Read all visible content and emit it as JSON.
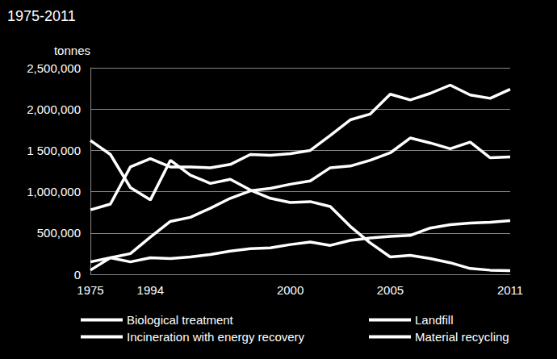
{
  "chart_data": {
    "type": "line",
    "title": "1975-2011",
    "ylabel": "tonnes",
    "categories": [
      "1975",
      null,
      null,
      "1994",
      null,
      null,
      null,
      null,
      null,
      null,
      "2000",
      null,
      null,
      null,
      null,
      "2005",
      null,
      null,
      null,
      null,
      null,
      "2011"
    ],
    "series": [
      {
        "name": "Biological treatment",
        "color": "#ffffff",
        "values": [
          50000,
          200000,
          150000,
          200000,
          190000,
          210000,
          240000,
          280000,
          310000,
          320000,
          360000,
          390000,
          350000,
          410000,
          440000,
          460000,
          470000,
          560000,
          600000,
          620000,
          630000,
          650000
        ]
      },
      {
        "name": "Landfill",
        "color": "#ffffff",
        "values": [
          1620000,
          1450000,
          1050000,
          900000,
          1380000,
          1200000,
          1100000,
          1150000,
          1020000,
          920000,
          870000,
          880000,
          820000,
          580000,
          380000,
          210000,
          230000,
          190000,
          140000,
          70000,
          50000,
          45000
        ]
      },
      {
        "name": "Incineration with energy recovery",
        "color": "#ffffff",
        "values": [
          780000,
          850000,
          1300000,
          1400000,
          1300000,
          1300000,
          1290000,
          1330000,
          1450000,
          1440000,
          1460000,
          1500000,
          1680000,
          1870000,
          1940000,
          2180000,
          2110000,
          2190000,
          2290000,
          2170000,
          2130000,
          2240000
        ]
      },
      {
        "name": "Material recycling",
        "color": "#ffffff",
        "values": [
          150000,
          200000,
          250000,
          450000,
          640000,
          690000,
          800000,
          920000,
          1010000,
          1040000,
          1090000,
          1130000,
          1290000,
          1310000,
          1380000,
          1470000,
          1650000,
          1590000,
          1520000,
          1600000,
          1410000,
          1420000
        ]
      }
    ],
    "ylim": [
      0,
      2500000
    ],
    "yticks": [
      0,
      {
        "value": 500000,
        "label": "500,000"
      },
      {
        "value": 1000000,
        "label": "1,000,000"
      },
      {
        "value": 1500000,
        "label": "1 500,000"
      },
      {
        "value": 2000000,
        "label": "2,000,000"
      },
      {
        "value": 2500000,
        "label": "2,500,000"
      }
    ],
    "grid": true,
    "legend": "bottom"
  }
}
